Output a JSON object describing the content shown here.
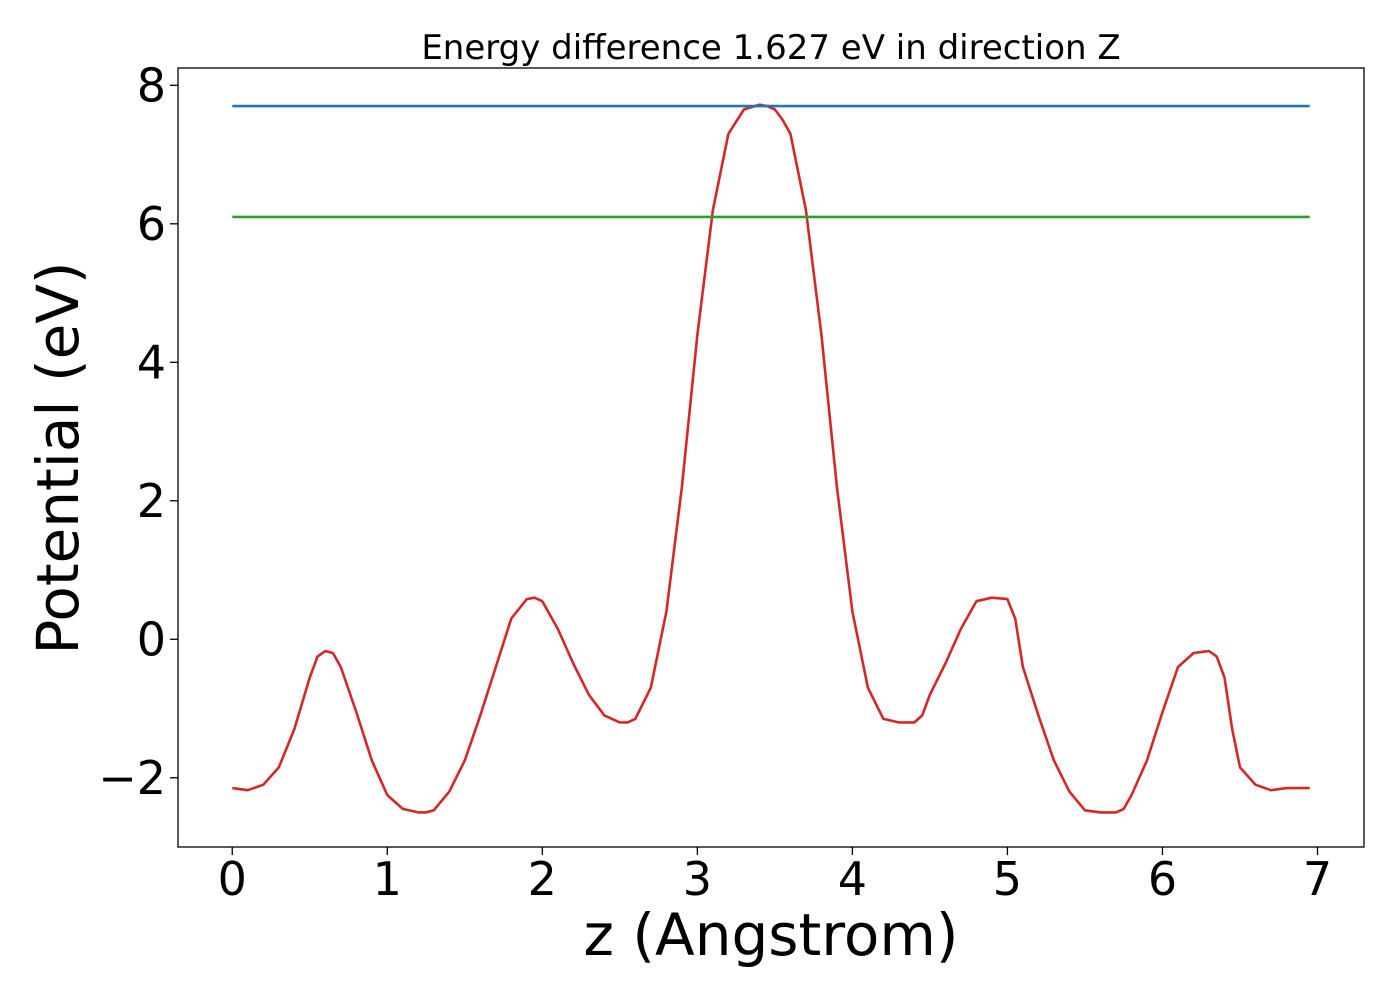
{
  "chart_data": {
    "type": "line",
    "title": "Energy difference 1.627 eV in direction Z",
    "xlabel": "z (Angstrom)",
    "ylabel": "Potential (eV)",
    "xlim": [
      -0.35,
      7.3
    ],
    "ylim": [
      -3.0,
      8.25
    ],
    "x_ticks": [
      0,
      1,
      2,
      3,
      4,
      5,
      6,
      7
    ],
    "x_tick_labels": [
      "0",
      "1",
      "2",
      "3",
      "4",
      "5",
      "6",
      "7"
    ],
    "y_ticks": [
      -2,
      0,
      2,
      4,
      6,
      8
    ],
    "y_tick_labels": [
      "−2",
      "0",
      "2",
      "4",
      "6",
      "8"
    ],
    "grid": false,
    "legend": "none",
    "series": [
      {
        "color": "#d62728",
        "x": [
          0.0,
          0.1,
          0.2,
          0.3,
          0.4,
          0.5,
          0.55,
          0.6,
          0.65,
          0.7,
          0.8,
          0.9,
          1.0,
          1.1,
          1.2,
          1.25,
          1.3,
          1.4,
          1.5,
          1.6,
          1.7,
          1.8,
          1.9,
          1.95,
          2.0,
          2.1,
          2.2,
          2.3,
          2.4,
          2.5,
          2.55,
          2.6,
          2.7,
          2.8,
          2.9,
          3.0,
          3.1,
          3.2,
          3.3,
          3.4,
          3.45,
          3.5,
          3.55,
          3.6,
          3.7,
          3.8,
          3.9,
          4.0,
          4.1,
          4.2,
          4.3,
          4.4,
          4.45,
          4.5,
          4.6,
          4.7,
          4.8,
          4.9,
          5.0,
          5.05,
          5.1,
          5.2,
          5.3,
          5.4,
          5.5,
          5.6,
          5.7,
          5.75,
          5.8,
          5.9,
          6.0,
          6.1,
          6.2,
          6.3,
          6.35,
          6.4,
          6.45,
          6.5,
          6.6,
          6.7,
          6.8,
          6.9,
          6.95
        ],
        "y": [
          -2.15,
          -2.18,
          -2.1,
          -1.85,
          -1.3,
          -0.55,
          -0.25,
          -0.17,
          -0.2,
          -0.4,
          -1.05,
          -1.75,
          -2.25,
          -2.45,
          -2.5,
          -2.5,
          -2.47,
          -2.2,
          -1.75,
          -1.1,
          -0.4,
          0.3,
          0.58,
          0.6,
          0.55,
          0.15,
          -0.35,
          -0.8,
          -1.1,
          -1.2,
          -1.2,
          -1.15,
          -0.7,
          0.4,
          2.2,
          4.4,
          6.2,
          7.3,
          7.65,
          7.72,
          7.7,
          7.65,
          7.5,
          7.3,
          6.2,
          4.4,
          2.2,
          0.4,
          -0.7,
          -1.15,
          -1.2,
          -1.2,
          -1.1,
          -0.8,
          -0.35,
          0.15,
          0.55,
          0.6,
          0.58,
          0.3,
          -0.4,
          -1.1,
          -1.75,
          -2.2,
          -2.47,
          -2.5,
          -2.5,
          -2.45,
          -2.25,
          -1.75,
          -1.05,
          -0.4,
          -0.2,
          -0.17,
          -0.25,
          -0.55,
          -1.3,
          -1.85,
          -2.1,
          -2.18,
          -2.15,
          -2.15,
          -2.15
        ]
      },
      {
        "color": "#1f77b4",
        "x": [
          0.0,
          6.95
        ],
        "y": [
          7.7,
          7.7
        ]
      },
      {
        "color": "#2ca02c",
        "x": [
          0.0,
          6.95
        ],
        "y": [
          6.1,
          6.1
        ]
      }
    ]
  }
}
